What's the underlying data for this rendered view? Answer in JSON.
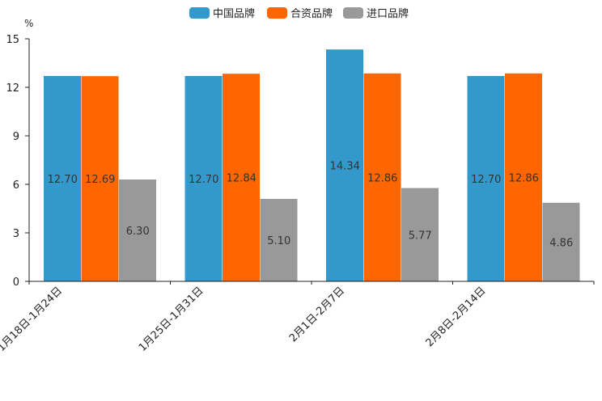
{
  "chart_data": {
    "type": "bar",
    "unit": "%",
    "categories": [
      "1月18日-1月24日",
      "1月25日-1月31日",
      "2月1日-2月7日",
      "2月8日-2月14日"
    ],
    "series": [
      {
        "name": "中国品牌",
        "color": "#3399CC",
        "values": [
          12.7,
          12.7,
          14.34,
          12.7
        ],
        "labels": [
          "12.70",
          "12.70",
          "14.34",
          "12.70"
        ]
      },
      {
        "name": "合资品牌",
        "color": "#FF6600",
        "values": [
          12.69,
          12.84,
          12.86,
          12.86
        ],
        "labels": [
          "12.69",
          "12.84",
          "12.86",
          "12.86"
        ]
      },
      {
        "name": "进口品牌",
        "color": "#999999",
        "values": [
          6.3,
          5.1,
          5.77,
          4.86
        ],
        "labels": [
          "6.30",
          "5.10",
          "5.77",
          "4.86"
        ]
      }
    ],
    "ylim": [
      0,
      15
    ],
    "yticks": [
      "0",
      "3",
      "6",
      "9",
      "12",
      "15"
    ],
    "legend_position": "top-center",
    "grid": false
  }
}
